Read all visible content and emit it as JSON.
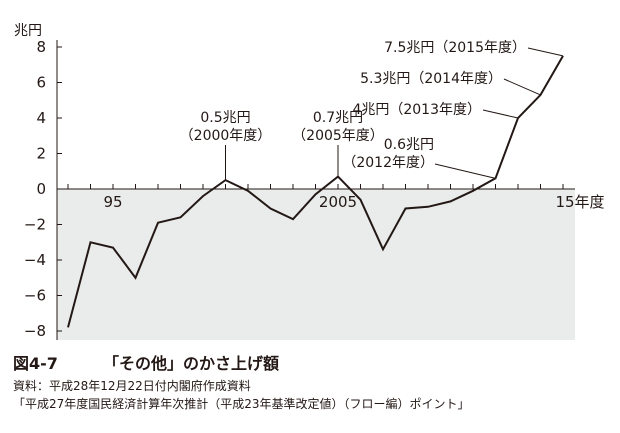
{
  "chart_data": {
    "type": "line",
    "y_unit": "兆円",
    "x_end_label": "15年度",
    "x": [
      1993,
      1994,
      1995,
      1996,
      1997,
      1998,
      1999,
      2000,
      2001,
      2002,
      2003,
      2004,
      2005,
      2006,
      2007,
      2008,
      2009,
      2010,
      2011,
      2012,
      2013,
      2014,
      2015
    ],
    "values": [
      -7.8,
      -3.0,
      -3.3,
      -5.0,
      -1.9,
      -1.6,
      -0.4,
      0.5,
      -0.1,
      -1.1,
      -1.7,
      -0.3,
      0.7,
      -0.6,
      -3.4,
      -1.1,
      -1.0,
      -0.7,
      -0.1,
      0.6,
      4.0,
      5.3,
      7.5
    ],
    "ylim": [
      -8,
      8
    ],
    "y_ticks": [
      "8",
      "6",
      "4",
      "2",
      "0",
      "−2",
      "−4",
      "−6",
      "−8"
    ],
    "x_ticks": [
      "95",
      "2005"
    ],
    "shaded_below_zero": true,
    "annotations": [
      {
        "year": 2000,
        "lines": [
          "0.5兆円",
          "（2000年度）"
        ]
      },
      {
        "year": 2005,
        "lines": [
          "0.7兆円",
          "（2005年度）"
        ]
      },
      {
        "year": 2012,
        "lines": [
          "0.6兆円",
          "（2012年度）"
        ]
      },
      {
        "year": 2013,
        "lines": [
          "4兆円（2013年度）"
        ]
      },
      {
        "year": 2014,
        "lines": [
          "5.3兆円（2014年度）"
        ]
      },
      {
        "year": 2015,
        "lines": [
          "7.5兆円（2015年度）"
        ]
      }
    ],
    "colors": {
      "line": "#231815",
      "shade": "#e9ecea"
    }
  },
  "caption": {
    "figure_no": "図4-7",
    "title": "「その他」のかさ上げ額",
    "source": "資料：平成28年12月22日付内閣府作成資料",
    "source_detail": "「平成27年度国民経済計算年次推計（平成23年基準改定値）（フロー編）ポイント」"
  }
}
